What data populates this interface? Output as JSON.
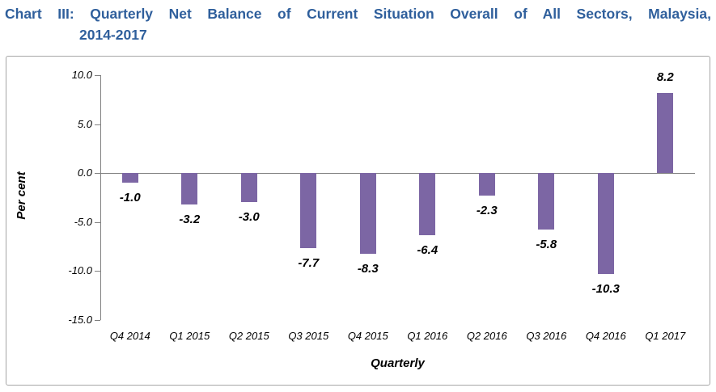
{
  "title": {
    "line1": "Chart III: Quarterly Net Balance of Current Situation Overall of All Sectors, Malaysia,",
    "line2": "2014-2017"
  },
  "colors": {
    "title": "#2f5f9c",
    "bar": "#7c66a4",
    "axis": "#808080",
    "frame_border": "#a6a6a6",
    "text": "#000000",
    "background": "#ffffff"
  },
  "chart_data": {
    "type": "bar",
    "title": "Chart III: Quarterly Net Balance of Current Situation Overall of All Sectors, Malaysia, 2014-2017",
    "categories": [
      "Q4 2014",
      "Q1 2015",
      "Q2 2015",
      "Q3 2015",
      "Q4 2015",
      "Q1 2016",
      "Q2 2016",
      "Q3 2016",
      "Q4 2016",
      "Q1 2017"
    ],
    "values": [
      -1.0,
      -3.2,
      -3.0,
      -7.7,
      -8.3,
      -6.4,
      -2.3,
      -5.8,
      -10.3,
      8.2
    ],
    "data_labels": [
      "-1.0",
      "-3.2",
      "-3.0",
      "-7.7",
      "-8.3",
      "-6.4",
      "-2.3",
      "-5.8",
      "-10.3",
      "8.2"
    ],
    "xlabel": "Quarterly",
    "ylabel": "Per cent",
    "ylim": [
      -15,
      10
    ],
    "yticks": [
      10,
      5,
      0,
      -5,
      -10,
      -15
    ],
    "ytick_labels": [
      "10.0",
      "5.0",
      "0.0",
      "-5.0",
      "-10.0",
      "-15.0"
    ],
    "grid": false,
    "legend": false,
    "zero_line": true
  }
}
